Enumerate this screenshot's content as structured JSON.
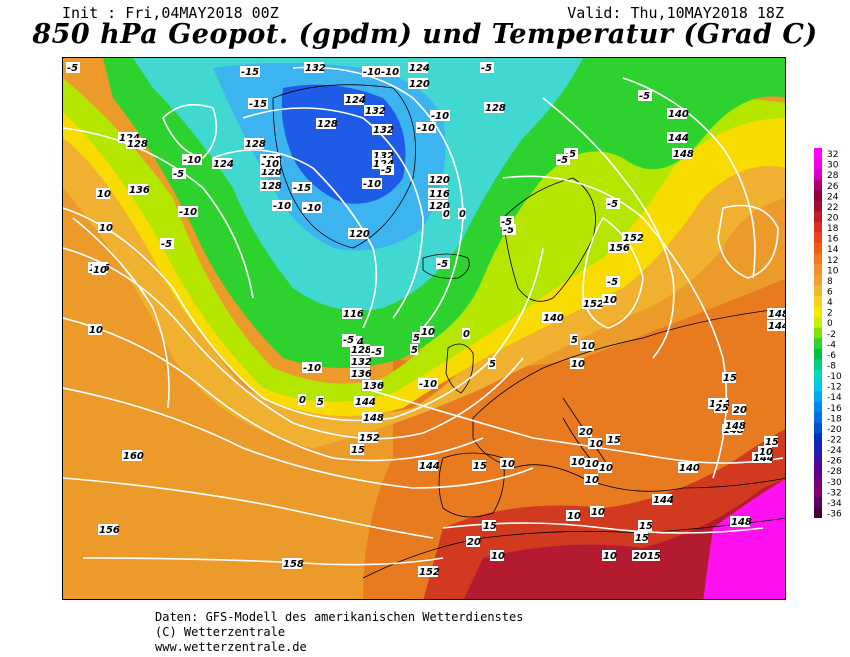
{
  "header": {
    "init": "Init : Fri,04MAY2018 00Z",
    "valid": "Valid: Thu,10MAY2018 18Z",
    "title": "850 hPa Geopot. (gpdm) und Temperatur (Grad C)"
  },
  "footer": {
    "line1": "Daten: GFS-Modell des amerikanischen Wetterdienstes",
    "line2": "(C) Wetterzentrale",
    "line3": "www.wetterzentrale.de"
  },
  "legend": {
    "values": [
      "32",
      "30",
      "28",
      "26",
      "24",
      "22",
      "20",
      "18",
      "16",
      "14",
      "12",
      "10",
      "8",
      "6",
      "4",
      "2",
      "0",
      "-2",
      "-4",
      "-6",
      "-8",
      "-10",
      "-12",
      "-14",
      "-16",
      "-18",
      "-20",
      "-22",
      "-24",
      "-26",
      "-28",
      "-30",
      "-32",
      "-34",
      "-36"
    ],
    "colors": [
      "#ff00ff",
      "#f000e8",
      "#d800c0",
      "#b00070",
      "#900040",
      "#a01030",
      "#c02020",
      "#d83020",
      "#e84818",
      "#f06010",
      "#f07820",
      "#f09030",
      "#f0a030",
      "#f0b830",
      "#f8d020",
      "#f8e800",
      "#c8f000",
      "#80e000",
      "#30d030",
      "#00c040",
      "#00d080",
      "#00d8c0",
      "#00c8e8",
      "#00a8f0",
      "#0088f0",
      "#0070e0",
      "#0050d0",
      "#0030c0",
      "#2020b0",
      "#4010a0",
      "#600090",
      "#700080",
      "#800070",
      "#600060",
      "#400040"
    ]
  },
  "map": {
    "colors": {
      "land_line": "#000000",
      "isoline": "#ffffff",
      "cold_core": "#1e5ce8",
      "very_cold": "#3cb4f0",
      "cold": "#40d8d0",
      "green": "#2ed22e",
      "lime": "#b4e600",
      "yellow": "#f8dc00",
      "warm_orange": "#f0b030",
      "orange": "#ec9a2a",
      "dark_orange": "#e87a20",
      "red": "#d23a20",
      "dark_red": "#b41a30",
      "magenta": "#ff10f0"
    },
    "geopot_labels": [
      "132",
      "124",
      "128",
      "128",
      "124",
      "132",
      "128",
      "124",
      "128",
      "128",
      "132",
      "132",
      "120",
      "124",
      "128",
      "120",
      "116",
      "136",
      "128",
      "124",
      "120",
      "156",
      "120",
      "116",
      "124",
      "128",
      "132",
      "136",
      "140",
      "144",
      "148",
      "152",
      "160",
      "156",
      "158",
      "152",
      "144",
      "136",
      "140",
      "144",
      "148",
      "152",
      "156",
      "140",
      "144",
      "148",
      "144",
      "140",
      "144",
      "148",
      "144",
      "148",
      "144",
      "148",
      "152"
    ],
    "temp_labels": [
      "-5",
      "-15",
      "-10",
      "-10",
      "-5",
      "-10",
      "-15",
      "-10",
      "-5",
      "-10",
      "-15",
      "-10",
      "-10",
      "-10",
      "-10",
      "-5",
      "-10",
      "-5",
      "-5",
      "-5",
      "-5",
      "0",
      "5",
      "-5",
      "-10",
      "-5",
      "0",
      "-5",
      "-5",
      "-5",
      "10",
      "10",
      "10",
      "10",
      "-5",
      "0",
      "5",
      "5",
      "10",
      "10",
      "10",
      "10",
      "10",
      "10",
      "10",
      "10",
      "15",
      "15",
      "10",
      "10",
      "10",
      "15",
      "15",
      "15",
      "20",
      "20",
      "15",
      "15",
      "20",
      "20",
      "25",
      "10",
      "15",
      "10",
      "10",
      "10",
      "15",
      "-10",
      "5",
      "5",
      "0",
      "-5"
    ]
  }
}
